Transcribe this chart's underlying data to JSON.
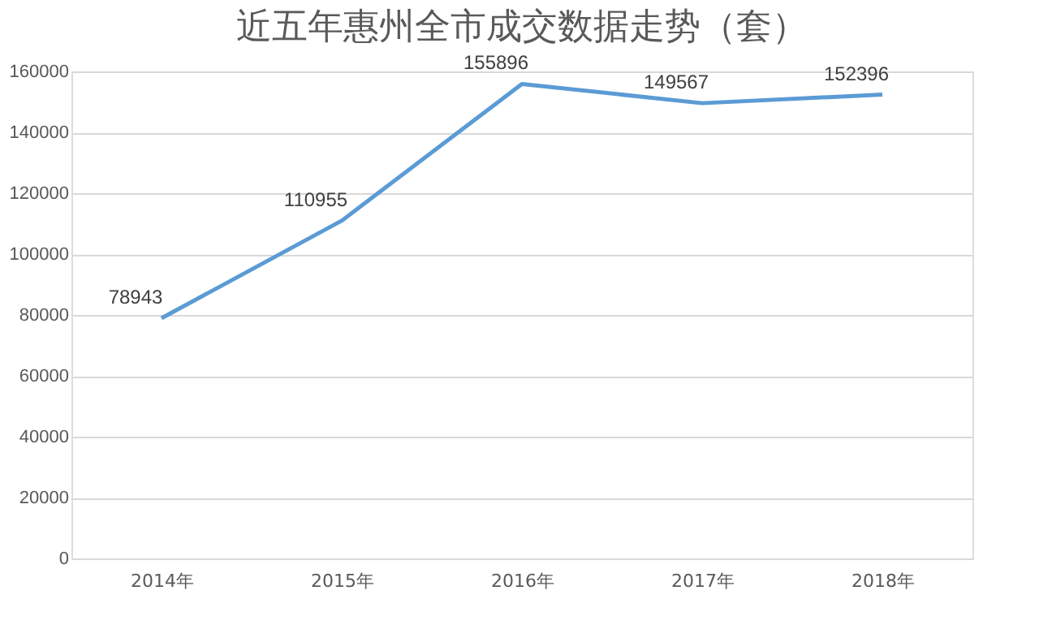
{
  "chart_data": {
    "type": "line",
    "title": "近五年惠州全市成交数据走势（套）",
    "categories": [
      "2014年",
      "2015年",
      "2016年",
      "2017年",
      "2018年"
    ],
    "series": [
      {
        "color": "#5b9bd5",
        "values": [
          78943,
          110955,
          155896,
          149567,
          152396
        ]
      }
    ],
    "ylim": [
      0,
      160000
    ],
    "yticks": [
      0,
      20000,
      40000,
      60000,
      80000,
      100000,
      120000,
      140000,
      160000
    ],
    "grid": "y",
    "data_labels": true,
    "legend": false,
    "marker": "none",
    "line_style": "solid"
  }
}
